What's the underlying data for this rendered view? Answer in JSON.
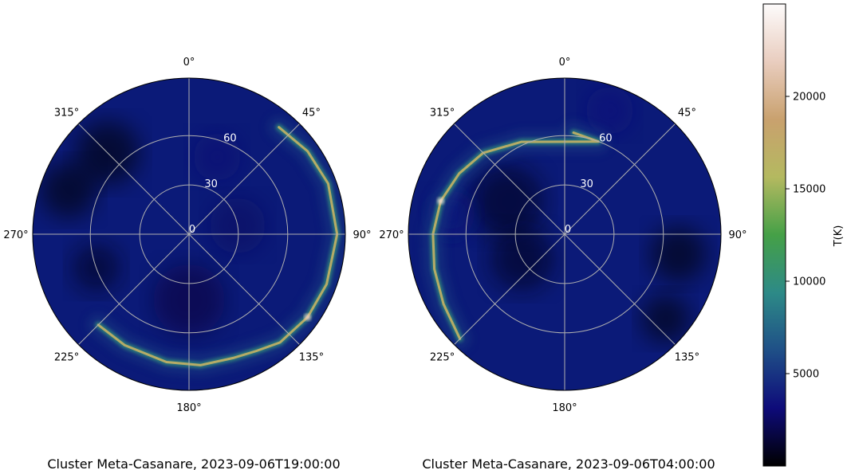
{
  "chart_data": {
    "type": "heatmap",
    "colormap": "gist_earth",
    "colormap_stops": [
      "#000000",
      "#0e0b7a",
      "#1f4f87",
      "#2d8a87",
      "#45a047",
      "#b4b960",
      "#c9a16e",
      "#e9cdbf",
      "#fdfbfb"
    ],
    "background_color": "#0b1a78",
    "plots": [
      {
        "title": "Cluster Meta-Casanare, 2023-09-06T19:00:00",
        "projection": "polar",
        "theta_zero": "top",
        "theta_direction": "clockwise",
        "theta_ticks": [
          {
            "deg": 0,
            "label": "0°"
          },
          {
            "deg": 45,
            "label": "45°"
          },
          {
            "deg": 90,
            "label": "90°"
          },
          {
            "deg": 135,
            "label": "135°"
          },
          {
            "deg": 180,
            "label": "180°"
          },
          {
            "deg": 225,
            "label": "225°"
          },
          {
            "deg": 270,
            "label": "270°"
          },
          {
            "deg": 315,
            "label": "315°"
          }
        ],
        "r_ticks": [
          {
            "value": 0,
            "label": "0"
          },
          {
            "value": 30,
            "label": "30"
          },
          {
            "value": 60,
            "label": "60"
          }
        ],
        "r_max": 95,
        "grid": true,
        "arc": {
          "points": [
            [
              40,
              85
            ],
            [
              55,
              88
            ],
            [
              70,
              90
            ],
            [
              90,
              90
            ],
            [
              110,
              89
            ],
            [
              125,
              88
            ],
            [
              140,
              86
            ],
            [
              150,
              82
            ],
            [
              160,
              80
            ],
            [
              175,
              80
            ],
            [
              190,
              79
            ],
            [
              210,
              78
            ],
            [
              225,
              78
            ]
          ],
          "peak_temperature_K": 22000
        }
      },
      {
        "title": "Cluster Meta-Casanare, 2023-09-06T04:00:00",
        "projection": "polar",
        "theta_zero": "top",
        "theta_direction": "clockwise",
        "theta_ticks": [
          {
            "deg": 0,
            "label": "0°"
          },
          {
            "deg": 45,
            "label": "45°"
          },
          {
            "deg": 90,
            "label": "90°"
          },
          {
            "deg": 135,
            "label": "135°"
          },
          {
            "deg": 180,
            "label": "180°"
          },
          {
            "deg": 225,
            "label": "225°"
          },
          {
            "deg": 270,
            "label": "270°"
          },
          {
            "deg": 315,
            "label": "315°"
          }
        ],
        "r_ticks": [
          {
            "value": 0,
            "label": "0"
          },
          {
            "value": 30,
            "label": "30"
          },
          {
            "value": 60,
            "label": "60"
          }
        ],
        "r_max": 95,
        "grid": true,
        "arc": {
          "points": [
            [
              5,
              62
            ],
            [
              20,
              60
            ],
            [
              335,
              62
            ],
            [
              315,
              70
            ],
            [
              300,
              74
            ],
            [
              285,
              78
            ],
            [
              270,
              80
            ],
            [
              255,
              82
            ],
            [
              240,
              85
            ],
            [
              225,
              90
            ]
          ],
          "peak_temperature_K": 23000
        }
      }
    ],
    "colorbar": {
      "label": "T(K)",
      "min": 0,
      "max": 25000,
      "ticks": [
        {
          "value": 5000,
          "label": "5000"
        },
        {
          "value": 10000,
          "label": "10000"
        },
        {
          "value": 15000,
          "label": "15000"
        },
        {
          "value": 20000,
          "label": "20000"
        }
      ]
    }
  }
}
